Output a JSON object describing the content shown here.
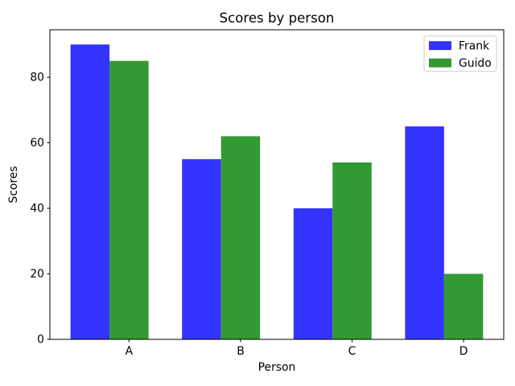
{
  "chart_data": {
    "type": "bar",
    "title": "Scores by person",
    "xlabel": "Person",
    "ylabel": "Scores",
    "categories": [
      "A",
      "B",
      "C",
      "D"
    ],
    "series": [
      {
        "name": "Frank",
        "color": "#3333ff",
        "values": [
          90,
          55,
          40,
          65
        ]
      },
      {
        "name": "Guido",
        "color": "#339933",
        "values": [
          85,
          62,
          54,
          20
        ]
      }
    ],
    "yticks": [
      0,
      20,
      40,
      60,
      80
    ],
    "ylim": [
      0,
      94.5
    ],
    "bar_width": 0.35,
    "grid": false,
    "legend": {
      "position": "upper right",
      "labels": [
        "Frank",
        "Guido"
      ],
      "border_color": "#cccccc",
      "background": "#ffffff"
    },
    "colors": {
      "spine": "#000000",
      "tick": "#000000",
      "plot_background": "#ffffff"
    }
  }
}
